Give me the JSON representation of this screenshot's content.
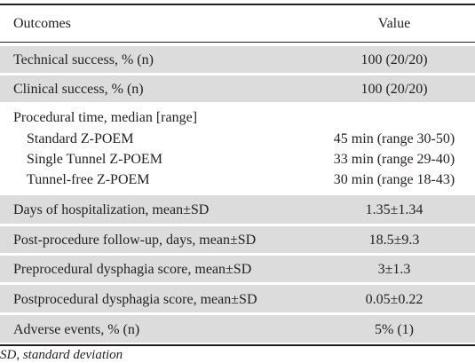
{
  "table": {
    "header": {
      "outcomes": "Outcomes",
      "value": "Value"
    },
    "rows": [
      {
        "label": "Technical success, % (n)",
        "value": "100 (20/20)"
      },
      {
        "label": "Clinical success, % (n)",
        "value": "100 (20/20)"
      },
      {
        "label": "Procedural time, median [range]",
        "sub": [
          {
            "label": "Standard Z-POEM",
            "value": "45 min (range 30-50)"
          },
          {
            "label": "Single Tunnel Z-POEM",
            "value": "33 min (range 29-40)"
          },
          {
            "label": "Tunnel-free Z-POEM",
            "value": "30 min (range 18-43)"
          }
        ]
      },
      {
        "label": "Days of hospitalization, mean±SD",
        "value": "1.35±1.34"
      },
      {
        "label": "Post-procedure follow-up, days, mean±SD",
        "value": "18.5±9.3"
      },
      {
        "label": "Preprocedural dysphagia score, mean±SD",
        "value": "3±1.3"
      },
      {
        "label": "Postprocedural dysphagia score, mean±SD",
        "value": "0.05±0.22"
      },
      {
        "label": "Adverse events, % (n)",
        "value": "5% (1)"
      }
    ]
  },
  "footnote": "SD, standard deviation"
}
